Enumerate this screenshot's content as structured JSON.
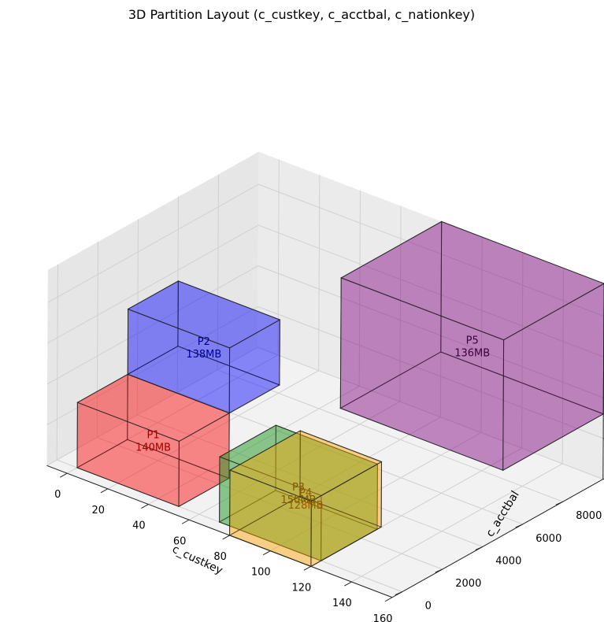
{
  "chart_data": {
    "type": "3d-box",
    "title": "3D Partition Layout (c_custkey, c_acctbal, c_nationkey)",
    "xlabel": "c_custkey",
    "ylabel": "c_acctbal",
    "zlabel": "",
    "xlim": [
      -10,
      160
    ],
    "ylim": [
      -500,
      10000
    ],
    "zlim": [
      0,
      24
    ],
    "xticks": [
      "0",
      "20",
      "40",
      "60",
      "80",
      "100",
      "120",
      "140",
      "160"
    ],
    "yticks": [
      "0",
      "2000",
      "4000",
      "6000",
      "8000"
    ],
    "zticks": [
      "0",
      "5",
      "10",
      "15",
      "20"
    ],
    "grid": true,
    "partitions": [
      {
        "label": "P1",
        "size": "140MB",
        "x": [
          0,
          50
        ],
        "y": [
          0,
          2500
        ],
        "z": [
          0,
          8
        ],
        "color": "#ff0000",
        "text_color": "#a00000",
        "alpha": 0.62
      },
      {
        "label": "P2",
        "size": "138MB",
        "x": [
          0,
          50
        ],
        "y": [
          2500,
          5000
        ],
        "z": [
          8,
          16
        ],
        "color": "#0000ff",
        "text_color": "#000090",
        "alpha": 0.62
      },
      {
        "label": "P3",
        "size": "150MB",
        "x": [
          70,
          120
        ],
        "y": [
          0,
          2800
        ],
        "z": [
          0,
          8
        ],
        "color": "#2a9a2a",
        "text_color": "#7a5a00",
        "alpha": 0.75
      },
      {
        "label": "P4",
        "size": "128MB",
        "x": [
          80,
          120
        ],
        "y": [
          -500,
          3000
        ],
        "z": [
          0,
          8
        ],
        "color": "#ffa500",
        "text_color": "#9a5a00",
        "alpha": 0.62
      },
      {
        "label": "P5",
        "size": "136MB",
        "x": [
          80,
          160
        ],
        "y": [
          5000,
          10000
        ],
        "z": [
          8,
          24
        ],
        "color": "#800080",
        "text_color": "#3a003a",
        "alpha": 0.62
      }
    ]
  }
}
